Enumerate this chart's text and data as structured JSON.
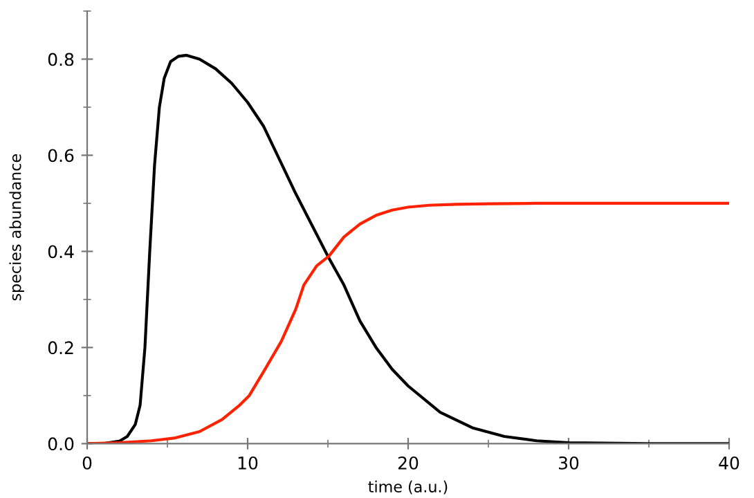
{
  "chart_data": {
    "type": "line",
    "xlabel": "time (a.u.)",
    "ylabel": "species abundance",
    "series": [
      {
        "color": "#000000",
        "x": [
          0,
          1,
          2,
          2.5,
          3,
          3.3,
          3.6,
          3.9,
          4.2,
          4.5,
          4.8,
          5.2,
          5.7,
          6.2,
          7,
          8,
          9,
          10,
          11,
          12,
          13,
          14,
          15,
          16,
          17,
          18,
          19,
          20,
          22,
          24,
          26,
          28,
          30,
          35,
          40
        ],
        "values": [
          0,
          0,
          0.005,
          0.015,
          0.04,
          0.08,
          0.2,
          0.4,
          0.58,
          0.7,
          0.76,
          0.795,
          0.806,
          0.808,
          0.8,
          0.78,
          0.75,
          0.71,
          0.66,
          0.59,
          0.52,
          0.455,
          0.39,
          0.33,
          0.255,
          0.2,
          0.155,
          0.12,
          0.065,
          0.033,
          0.015,
          0.006,
          0.002,
          0,
          0
        ]
      },
      {
        "color": "#ff2200",
        "x": [
          0,
          2,
          4,
          5.5,
          7,
          8.4,
          9.5,
          10.1,
          11,
          12.1,
          13,
          13.5,
          14.3,
          15.06,
          16,
          17,
          18,
          19,
          20,
          21.3,
          23,
          25,
          28,
          32,
          40
        ],
        "values": [
          0,
          0.002,
          0.006,
          0.012,
          0.025,
          0.05,
          0.08,
          0.1,
          0.15,
          0.213,
          0.28,
          0.33,
          0.37,
          0.39,
          0.43,
          0.457,
          0.475,
          0.486,
          0.492,
          0.496,
          0.498,
          0.499,
          0.5,
          0.5,
          0.5
        ]
      }
    ],
    "xlim": [
      0,
      40
    ],
    "xticks": [
      0,
      10,
      20,
      30,
      40
    ],
    "ylim": [
      0,
      0.9
    ],
    "yticks": [
      {
        "value": 0,
        "label": "0.0"
      },
      0.2,
      0.4,
      0.6,
      0.8
    ],
    "grid": false,
    "line_style": "solid",
    "marker": "none"
  }
}
